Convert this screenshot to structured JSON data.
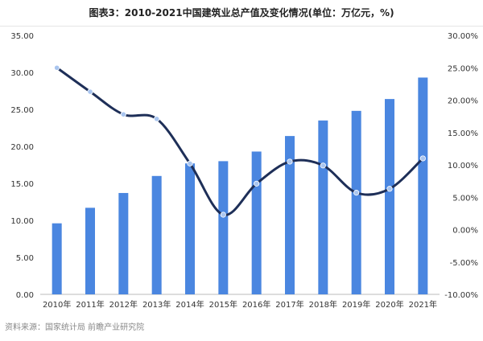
{
  "title": "图表3：2010-2021中国建筑业总产值及变化情况(单位：万亿元，%)",
  "source": "资料来源：国家统计局 前瞻产业研究院",
  "colors": {
    "bar": "#4a86e0",
    "line": "#1e2f58",
    "point": "#a9c5ef",
    "axis": "#bbbbbb",
    "text": "#333333"
  },
  "chart_data": {
    "type": "bar",
    "categories": [
      "2010年",
      "2011年",
      "2012年",
      "2013年",
      "2014年",
      "2015年",
      "2016年",
      "2017年",
      "2018年",
      "2019年",
      "2020年",
      "2021年"
    ],
    "series": [
      {
        "type": "bar",
        "axis": "left",
        "values": [
          9.6,
          11.7,
          13.7,
          16.0,
          17.7,
          18.0,
          19.3,
          21.4,
          23.5,
          24.8,
          26.4,
          29.3
        ]
      },
      {
        "type": "line",
        "axis": "right",
        "values": [
          25.0,
          21.3,
          17.8,
          17.1,
          10.2,
          2.3,
          7.1,
          10.5,
          9.9,
          5.7,
          6.3,
          11.0
        ]
      }
    ],
    "y_left": {
      "min": 0,
      "max": 35,
      "step": 5,
      "tick_labels": [
        "0.00",
        "5.00",
        "10.00",
        "15.00",
        "20.00",
        "25.00",
        "30.00",
        "35.00"
      ]
    },
    "y_right": {
      "min": -10,
      "max": 30,
      "step": 5,
      "tick_labels": [
        "-10.00%",
        "-5.00%",
        "0.00%",
        "5.00%",
        "10.00%",
        "15.00%",
        "20.00%",
        "25.00%",
        "30.00%"
      ]
    },
    "grid": false,
    "legend": "none"
  }
}
